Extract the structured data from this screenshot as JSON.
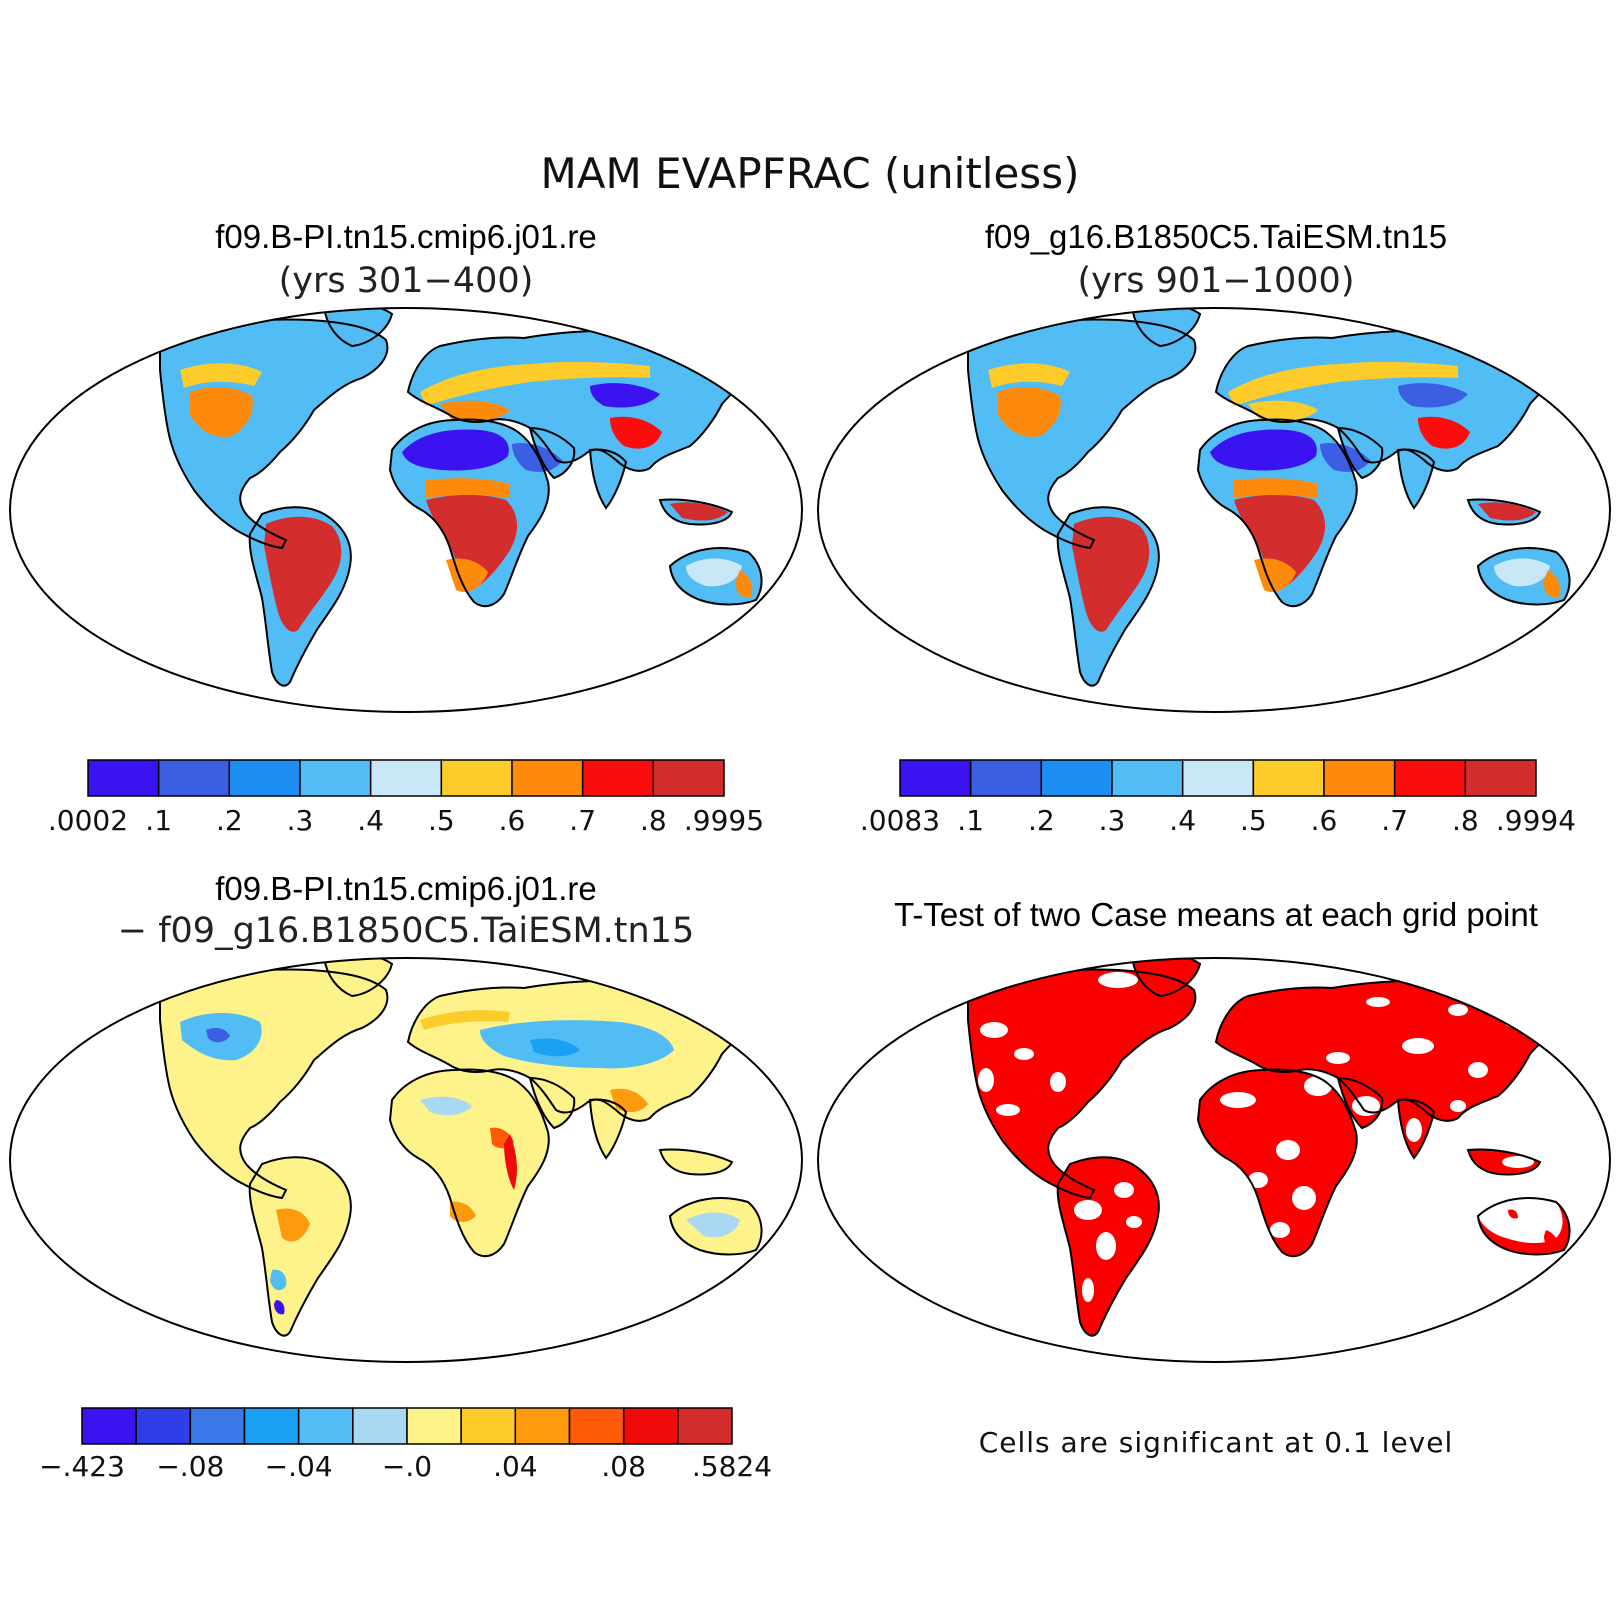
{
  "figure": {
    "title": "MAM EVAPFRAC (unitless)",
    "note": "Cells are significant at 0.1 level"
  },
  "panels": [
    {
      "id": "case1",
      "title": "f09.B-PI.tn15.cmip6.j01.re",
      "subtitle": "(yrs 301−400)"
    },
    {
      "id": "case2",
      "title": "f09_g16.B1850C5.TaiESM.tn15",
      "subtitle": "(yrs 901−1000)"
    },
    {
      "id": "diff",
      "title": "f09.B-PI.tn15.cmip6.j01.re",
      "subtitle": "− f09_g16.B1850C5.TaiESM.tn15"
    },
    {
      "id": "ttest",
      "title": "T-Test of two Case means at each grid point",
      "subtitle": ""
    }
  ],
  "chart_data": [
    {
      "type": "heatmap",
      "title": "f09.B-PI.tn15.cmip6.j01.re",
      "subtitle": "(yrs 301−400)",
      "projection": "robinson world map",
      "colorbar": {
        "labels": [
          ".0002",
          ".1",
          ".2",
          ".3",
          ".4",
          ".5",
          ".6",
          ".7",
          ".8",
          ".9995"
        ],
        "colors": [
          "#3a13f0",
          "#3b5ee2",
          "#1e8ff2",
          "#52bdf5",
          "#c9e8f7",
          "#fdcc2b",
          "#fd8a0b",
          "#fb0d0d",
          "#d42d2d"
        ]
      }
    },
    {
      "type": "heatmap",
      "title": "f09_g16.B1850C5.TaiESM.tn15",
      "subtitle": "(yrs 901−1000)",
      "projection": "robinson world map",
      "colorbar": {
        "labels": [
          ".0083",
          ".1",
          ".2",
          ".3",
          ".4",
          ".5",
          ".6",
          ".7",
          ".8",
          ".9994"
        ],
        "colors": [
          "#3a13f0",
          "#3b5ee2",
          "#1e8ff2",
          "#52bdf5",
          "#c9e8f7",
          "#fdcc2b",
          "#fd8a0b",
          "#fb0d0d",
          "#d42d2d"
        ]
      }
    },
    {
      "type": "heatmap",
      "title": "f09.B-PI.tn15.cmip6.j01.re",
      "subtitle": "− f09_g16.B1850C5.TaiESM.tn15",
      "projection": "robinson world map",
      "colorbar": {
        "labels": [
          "−.423",
          "−.08",
          "−.04",
          "−.0",
          ".04",
          ".08",
          ".5824"
        ],
        "label_box_index": [
          0,
          2,
          4,
          6,
          8,
          10,
          12
        ],
        "colors": [
          "#3a13f0",
          "#2f3fe8",
          "#3b78e8",
          "#1aa0f5",
          "#52bdf5",
          "#a9d9f2",
          "#fdf38a",
          "#fdcc2b",
          "#fd9a0e",
          "#fd5a0a",
          "#f00b0b",
          "#d42d2d"
        ]
      }
    },
    {
      "type": "heatmap",
      "title": "T-Test of two Case means at each grid point",
      "projection": "robinson world map",
      "significant_color": "#fb0000",
      "note": "Cells are significant at 0.1 level"
    }
  ]
}
